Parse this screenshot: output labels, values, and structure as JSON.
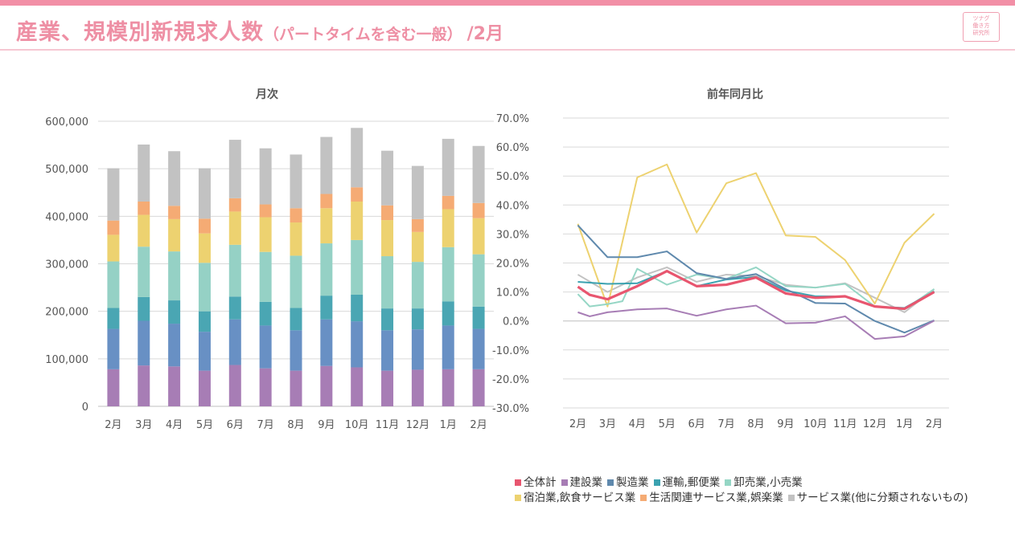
{
  "header": {
    "title": "産業、規模別新規求人数",
    "subtitle": "（パートタイムを含む一般）",
    "month": "/2月",
    "logo": [
      "ツナグ",
      "働き方",
      "研究所"
    ]
  },
  "chart_data": [
    {
      "type": "bar",
      "stacked": true,
      "title": "月次",
      "categories": [
        "2月",
        "3月",
        "4月",
        "5月",
        "6月",
        "7月",
        "8月",
        "9月",
        "10月",
        "11月",
        "12月",
        "1月",
        "2月"
      ],
      "ylim": [
        0,
        600000
      ],
      "yticks": [
        0,
        100000,
        200000,
        300000,
        400000,
        500000,
        600000
      ],
      "ytick_labels": [
        "0",
        "100,000",
        "200,000",
        "300,000",
        "400,000",
        "500,000",
        "600,000"
      ],
      "grid": true,
      "series": [
        {
          "name": "建設業",
          "color": "#a77db5",
          "values": [
            78000,
            86000,
            84000,
            75000,
            87000,
            80000,
            75000,
            85000,
            82000,
            75000,
            77000,
            78000,
            78000
          ]
        },
        {
          "name": "製造業",
          "color": "#6890c4",
          "values": [
            85000,
            94000,
            90000,
            82000,
            96000,
            90000,
            85000,
            98000,
            97000,
            85000,
            85000,
            92000,
            85000
          ]
        },
        {
          "name": "運輸,郵便業",
          "color": "#4aa6b3",
          "values": [
            44000,
            50000,
            49000,
            43000,
            48000,
            50000,
            47000,
            50000,
            56000,
            46000,
            44000,
            51000,
            47000
          ]
        },
        {
          "name": "卸売業,小売業",
          "color": "#95d1c5",
          "values": [
            98000,
            106000,
            103000,
            102000,
            109000,
            105000,
            110000,
            110000,
            115000,
            110000,
            98000,
            114000,
            110000
          ]
        },
        {
          "name": "宿泊業,飲食サービス業",
          "color": "#edd270",
          "values": [
            56000,
            67000,
            68000,
            62000,
            70000,
            73000,
            70000,
            74000,
            81000,
            76000,
            63000,
            80000,
            76000
          ]
        },
        {
          "name": "生活関連サービス業,娯楽業",
          "color": "#f5ab74",
          "values": [
            30000,
            28000,
            28000,
            31000,
            28000,
            27000,
            30000,
            30000,
            30000,
            31000,
            27000,
            28000,
            32000
          ]
        },
        {
          "name": "サービス業(他に分類されないもの)",
          "color": "#c2c2c2",
          "values": [
            110000,
            120000,
            115000,
            106000,
            123000,
            118000,
            113000,
            120000,
            125000,
            115000,
            112000,
            120000,
            120000
          ]
        }
      ]
    },
    {
      "type": "line",
      "title": "前年同月比",
      "categories": [
        "2月",
        "3月",
        "4月",
        "5月",
        "6月",
        "7月",
        "8月",
        "9月",
        "10月",
        "11月",
        "12月",
        "1月",
        "2月"
      ],
      "ylim": [
        -30,
        70
      ],
      "yticks": [
        -30,
        -20,
        -10,
        0,
        10,
        20,
        30,
        40,
        50,
        60,
        70
      ],
      "ytick_labels": [
        "-30.0%",
        "-20.0%",
        "-10.0%",
        "0.0%",
        "10.0%",
        "20.0%",
        "30.0%",
        "40.0%",
        "50.0%",
        "60.0%",
        "70.0%"
      ],
      "grid": true,
      "series": [
        {
          "name": "全体計",
          "color": "#e8566f",
          "values": [
            11.8,
            9.0,
            7.5,
            12.0,
            17.2,
            12.0,
            12.5,
            15.0,
            9.5,
            8.0,
            8.5,
            5.0,
            4.2,
            10.0
          ],
          "x": [
            0,
            0.4,
            1,
            2,
            3,
            4,
            5,
            6,
            7,
            8,
            9,
            10,
            11,
            12
          ]
        },
        {
          "name": "建設業",
          "color": "#a77db5",
          "values": [
            3.0,
            1.6,
            3.0,
            4.0,
            4.3,
            1.8,
            4.0,
            5.3,
            -0.8,
            -0.6,
            1.6,
            -6.2,
            -5.3,
            0.1
          ],
          "x": [
            0,
            0.4,
            1,
            2,
            3,
            4,
            5,
            6,
            7,
            8,
            9,
            10,
            11,
            12
          ]
        },
        {
          "name": "製造業",
          "color": "#5f89ad",
          "values": [
            33.0,
            22.0,
            22.0,
            24.0,
            16.5,
            14.5,
            16.2,
            11.0,
            6.2,
            6.0,
            0,
            -4.0,
            0.2
          ],
          "x": [
            0,
            1,
            2,
            3,
            4,
            5,
            6,
            7,
            8,
            9,
            10,
            11,
            12
          ]
        },
        {
          "name": "運輸,郵便業",
          "color": "#3ba2b0",
          "values": [
            13.5,
            12.8,
            13.0,
            17.2,
            12.0,
            14.3,
            15.2,
            10.5,
            8.5,
            8.5,
            5.0,
            4.5,
            10.2
          ],
          "x": [
            0,
            1,
            2,
            3,
            4,
            5,
            6,
            7,
            8,
            9,
            10,
            11,
            12
          ]
        },
        {
          "name": "卸売業,小売業",
          "color": "#95d6c5",
          "values": [
            9.3,
            5.0,
            5.8,
            6.8,
            18.0,
            12.5,
            16.0,
            14.5,
            18.5,
            12.0,
            11.5,
            12.8,
            5.0,
            4.0,
            11.0
          ],
          "x": [
            0,
            0.4,
            1,
            1.5,
            2,
            3,
            4,
            5,
            6,
            7,
            8,
            9,
            10,
            11,
            12
          ]
        },
        {
          "name": "宿泊業,飲食サービス業",
          "color": "#edd270",
          "values": [
            33.5,
            5.0,
            49.5,
            54.0,
            30.5,
            47.5,
            51.0,
            29.5,
            29.0,
            21.0,
            6.0,
            27.0,
            37.0
          ],
          "x": [
            0,
            1,
            2,
            3,
            4,
            5,
            6,
            7,
            8,
            9,
            10,
            11,
            12
          ]
        },
        {
          "name": "生活関連サービス業,娯楽業",
          "color": "#f5ab74",
          "values": [],
          "x": []
        },
        {
          "name": "サービス業(他に分類されないもの)",
          "color": "#c2c2c2",
          "values": [
            16.0,
            10.0,
            15.0,
            18.5,
            13.5,
            16.0,
            15.5,
            12.5,
            11.5,
            13.0,
            8.0,
            3.0,
            11.0
          ],
          "x": [
            0,
            1,
            2,
            3,
            4,
            5,
            6,
            7,
            8,
            9,
            10,
            11,
            12
          ]
        }
      ]
    }
  ],
  "legend": [
    {
      "name": "全体計",
      "color": "#e8566f"
    },
    {
      "name": "建設業",
      "color": "#a77db5"
    },
    {
      "name": "製造業",
      "color": "#5f89ad"
    },
    {
      "name": "運輸,郵便業",
      "color": "#3ba2b0"
    },
    {
      "name": "卸売業,小売業",
      "color": "#95d6c5"
    },
    {
      "name": "宿泊業,飲食サービス業",
      "color": "#edd270"
    },
    {
      "name": "生活関連サービス業,娯楽業",
      "color": "#f5ab74"
    },
    {
      "name": "サービス業(他に分類されないもの)",
      "color": "#c2c2c2"
    }
  ]
}
